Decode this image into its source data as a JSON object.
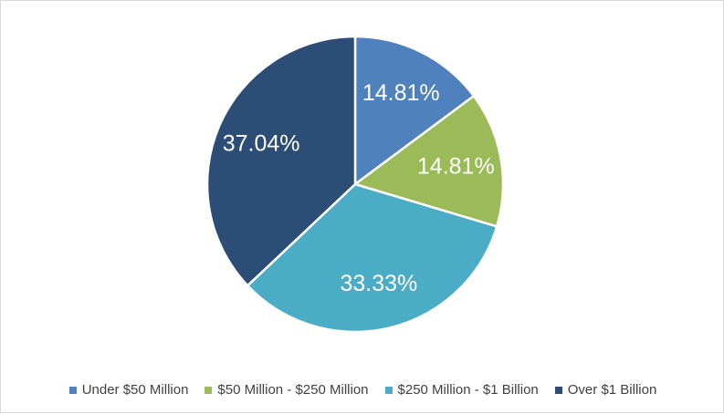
{
  "chart_data": {
    "type": "pie",
    "categories": [
      "Under $50 Million",
      "$50 Million - $250 Million",
      "$250 Million - $1 Billion",
      "Over $1 Billion"
    ],
    "values": [
      14.81,
      14.81,
      33.33,
      37.04
    ],
    "labels": [
      "14.81%",
      "14.81%",
      "33.33%",
      "37.04%"
    ],
    "colors": [
      "#4f81bd",
      "#9bbb59",
      "#4bacc6",
      "#2c4d75"
    ],
    "title": "",
    "legend_position": "bottom"
  }
}
